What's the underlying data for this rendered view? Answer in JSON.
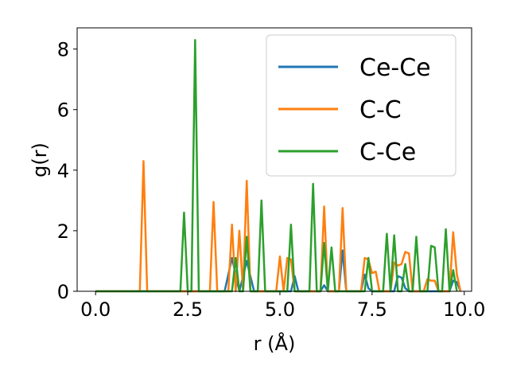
{
  "chart_data": {
    "type": "line",
    "title": "",
    "xlabel": "r (Å)",
    "ylabel": "g(r)",
    "xlim": [
      -0.5,
      10.2
    ],
    "ylim": [
      0,
      8.7
    ],
    "xticks": [
      0.0,
      2.5,
      5.0,
      7.5,
      10.0
    ],
    "xtick_labels": [
      "0.0",
      "2.5",
      "5.0",
      "7.5",
      "10.0"
    ],
    "yticks": [
      0,
      2,
      4,
      6,
      8
    ],
    "ytick_labels": [
      "0",
      "2",
      "4",
      "6",
      "8"
    ],
    "grid": false,
    "legend_position": "top-right",
    "series": [
      {
        "name": "Ce-Ce",
        "color": "#1f77b4",
        "x": [
          0,
          3.5,
          3.7,
          3.9,
          4.1,
          4.3,
          5.3,
          5.4,
          5.5,
          6.1,
          6.2,
          6.3,
          6.6,
          6.7,
          6.8,
          7.2,
          7.3,
          7.4,
          7.5,
          8.1,
          8.2,
          8.3,
          8.4,
          8.5,
          9.6,
          9.7,
          9.8,
          9.9
        ],
        "y": [
          0,
          0,
          1.1,
          0,
          1.0,
          0,
          0,
          0.5,
          0,
          0,
          0.2,
          0,
          0,
          1.35,
          0,
          0,
          0.55,
          0.1,
          0,
          0,
          0.5,
          0.45,
          0.1,
          0,
          0,
          0.35,
          0.3,
          0
        ]
      },
      {
        "name": "C-C",
        "color": "#ff7f0e",
        "x": [
          0,
          1.2,
          1.3,
          1.4,
          3.1,
          3.2,
          3.3,
          3.6,
          3.7,
          3.8,
          3.9,
          4.0,
          4.1,
          4.2,
          4.9,
          5.0,
          5.1,
          5.2,
          5.3,
          5.4,
          5.5,
          6.1,
          6.2,
          6.3,
          6.6,
          6.7,
          6.8,
          7.2,
          7.3,
          7.4,
          7.5,
          7.6,
          7.7,
          8.0,
          8.1,
          8.2,
          8.3,
          8.4,
          8.5,
          8.6,
          8.9,
          9.0,
          9.1,
          9.2,
          9.3,
          9.6,
          9.7,
          9.8,
          9.9
        ],
        "y": [
          0,
          0,
          4.3,
          0,
          0,
          2.95,
          0,
          0,
          2.2,
          0,
          2.0,
          0,
          3.65,
          0,
          0,
          1.15,
          0,
          1.1,
          1.05,
          0,
          0,
          0,
          2.8,
          0,
          0,
          2.75,
          0,
          0,
          1.1,
          1.05,
          0.6,
          0.65,
          0,
          0,
          0.95,
          0.85,
          0.9,
          1.3,
          1.25,
          0,
          0,
          0.4,
          0.35,
          0.35,
          0,
          0,
          1.95,
          0.55,
          0
        ]
      },
      {
        "name": "C-Ce",
        "color": "#2ca02c",
        "x": [
          0,
          2.3,
          2.4,
          2.5,
          2.6,
          2.7,
          2.8,
          3.7,
          3.8,
          3.9,
          4.0,
          4.1,
          4.2,
          4.4,
          4.5,
          4.6,
          5.2,
          5.3,
          5.4,
          5.8,
          5.9,
          6.0,
          6.1,
          6.2,
          6.3,
          6.4,
          6.5,
          6.6,
          7.3,
          7.4,
          7.5,
          7.8,
          7.9,
          8.0,
          8.1,
          8.2,
          8.3,
          8.4,
          8.5,
          8.6,
          8.7,
          8.8,
          9.0,
          9.1,
          9.2,
          9.3,
          9.4,
          9.5,
          9.6,
          9.7,
          9.8
        ],
        "y": [
          0,
          0,
          2.6,
          0,
          0,
          8.3,
          0,
          0,
          1.1,
          0,
          0,
          1.8,
          0,
          0,
          3.0,
          0,
          0,
          2.2,
          0,
          0,
          3.55,
          0,
          0,
          1.6,
          0,
          1.45,
          0,
          0,
          0,
          1.1,
          0,
          0,
          1.9,
          0,
          1.85,
          0,
          0,
          0.9,
          0,
          0,
          1.8,
          0,
          0,
          1.5,
          1.45,
          0,
          0,
          2.05,
          0,
          0.7,
          0
        ]
      }
    ]
  }
}
